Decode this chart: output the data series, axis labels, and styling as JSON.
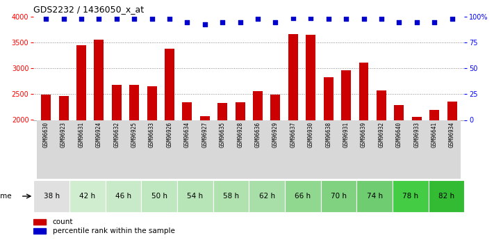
{
  "title": "GDS2232 / 1436050_x_at",
  "samples": [
    "GSM96630",
    "GSM96923",
    "GSM96631",
    "GSM96924",
    "GSM96632",
    "GSM96925",
    "GSM96633",
    "GSM96926",
    "GSM96634",
    "GSM96927",
    "GSM96635",
    "GSM96928",
    "GSM96636",
    "GSM96929",
    "GSM96637",
    "GSM96930",
    "GSM96638",
    "GSM96931",
    "GSM96639",
    "GSM96932",
    "GSM96640",
    "GSM96933",
    "GSM96641",
    "GSM96934"
  ],
  "bar_values": [
    2490,
    2460,
    3450,
    3560,
    2680,
    2680,
    2650,
    3380,
    2340,
    2080,
    2330,
    2340,
    2560,
    2490,
    3660,
    3650,
    2830,
    2960,
    3110,
    2570,
    2290,
    2060,
    2190,
    2360
  ],
  "percentile_values": [
    98,
    98,
    98,
    98,
    98,
    98,
    98,
    98,
    95,
    93,
    95,
    95,
    98,
    95,
    99,
    99,
    98,
    98,
    98,
    98,
    95,
    95,
    95,
    98
  ],
  "time_groups": [
    {
      "label": "38 h",
      "span": 2,
      "color": "#e0e0e0"
    },
    {
      "label": "42 h",
      "span": 2,
      "color": "#d0edd0"
    },
    {
      "label": "46 h",
      "span": 2,
      "color": "#c8eac8"
    },
    {
      "label": "50 h",
      "span": 2,
      "color": "#c0e8c0"
    },
    {
      "label": "54 h",
      "span": 2,
      "color": "#b8e5b8"
    },
    {
      "label": "58 h",
      "span": 2,
      "color": "#b0e2b0"
    },
    {
      "label": "62 h",
      "span": 2,
      "color": "#a8dfa8"
    },
    {
      "label": "66 h",
      "span": 2,
      "color": "#90d890"
    },
    {
      "label": "70 h",
      "span": 2,
      "color": "#80d280"
    },
    {
      "label": "74 h",
      "span": 2,
      "color": "#70cc70"
    },
    {
      "label": "78 h",
      "span": 2,
      "color": "#44cc44"
    },
    {
      "label": "82 h",
      "span": 2,
      "color": "#33bb33"
    }
  ],
  "bar_color": "#cc0000",
  "percentile_color": "#0000cc",
  "ylim_left": [
    2000,
    4000
  ],
  "ylim_right": [
    0,
    100
  ],
  "yticks_left": [
    2000,
    2500,
    3000,
    3500,
    4000
  ],
  "yticks_right": [
    0,
    25,
    50,
    75,
    100
  ],
  "ytick_labels_right": [
    "0",
    "25",
    "50",
    "75",
    "100%"
  ],
  "background_color": "#ffffff",
  "grid_color": "#888888",
  "grid_dotted_at": [
    2500,
    3000,
    3500
  ]
}
